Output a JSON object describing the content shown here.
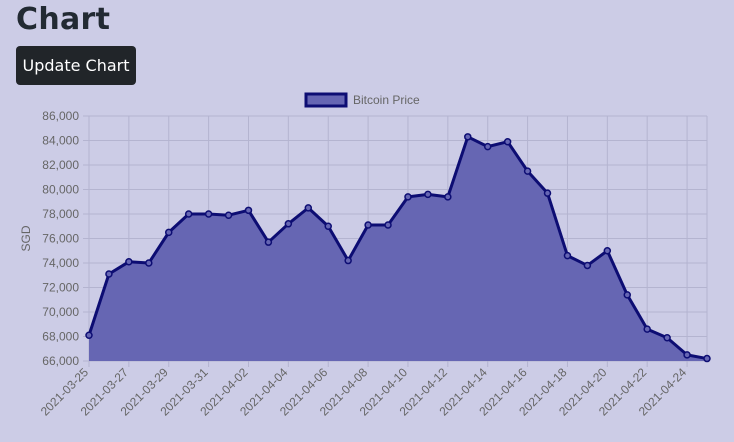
{
  "page": {
    "title": "Chart",
    "update_button_label": "Update Chart"
  },
  "colors": {
    "background": "#cccce6",
    "fill": "#6666b3",
    "line": "#0d0d73",
    "button": "#212529",
    "grid": "#b4b4d0",
    "tick_text": "#666666"
  },
  "chart_data": {
    "type": "area",
    "legend": [
      "Bitcoin Price"
    ],
    "legend_position": "top-center",
    "xlabel": "",
    "ylabel": "SGD",
    "ylim": [
      66000,
      86000
    ],
    "yticks": [
      66000,
      68000,
      70000,
      72000,
      74000,
      76000,
      78000,
      80000,
      82000,
      84000,
      86000
    ],
    "ytick_labels": [
      "66,000",
      "68,000",
      "70,000",
      "72,000",
      "74,000",
      "76,000",
      "78,000",
      "80,000",
      "82,000",
      "84,000",
      "86,000"
    ],
    "xtick_labels": [
      "2021-03-25",
      "2021-03-27",
      "2021-03-29",
      "2021-03-31",
      "2021-04-02",
      "2021-04-04",
      "2021-04-06",
      "2021-04-08",
      "2021-04-10",
      "2021-04-12",
      "2021-04-14",
      "2021-04-16",
      "2021-04-18",
      "2021-04-20",
      "2021-04-22",
      "2021-04-24"
    ],
    "grid": true,
    "series": [
      {
        "name": "Bitcoin Price",
        "x": [
          "2021-03-25",
          "2021-03-26",
          "2021-03-27",
          "2021-03-28",
          "2021-03-29",
          "2021-03-30",
          "2021-03-31",
          "2021-04-01",
          "2021-04-02",
          "2021-04-03",
          "2021-04-04",
          "2021-04-05",
          "2021-04-06",
          "2021-04-07",
          "2021-04-08",
          "2021-04-09",
          "2021-04-10",
          "2021-04-11",
          "2021-04-12",
          "2021-04-13",
          "2021-04-14",
          "2021-04-15",
          "2021-04-16",
          "2021-04-17",
          "2021-04-18",
          "2021-04-19",
          "2021-04-20",
          "2021-04-21",
          "2021-04-22",
          "2021-04-23",
          "2021-04-24",
          "2021-04-25"
        ],
        "values": [
          68100,
          73100,
          74100,
          74000,
          76500,
          78000,
          78000,
          77900,
          78300,
          75700,
          77200,
          78500,
          77000,
          74200,
          77100,
          77100,
          79400,
          79600,
          79400,
          84300,
          83500,
          83900,
          81500,
          79700,
          74600,
          73800,
          75000,
          71400,
          68600,
          67900,
          66500,
          66200
        ]
      }
    ]
  }
}
